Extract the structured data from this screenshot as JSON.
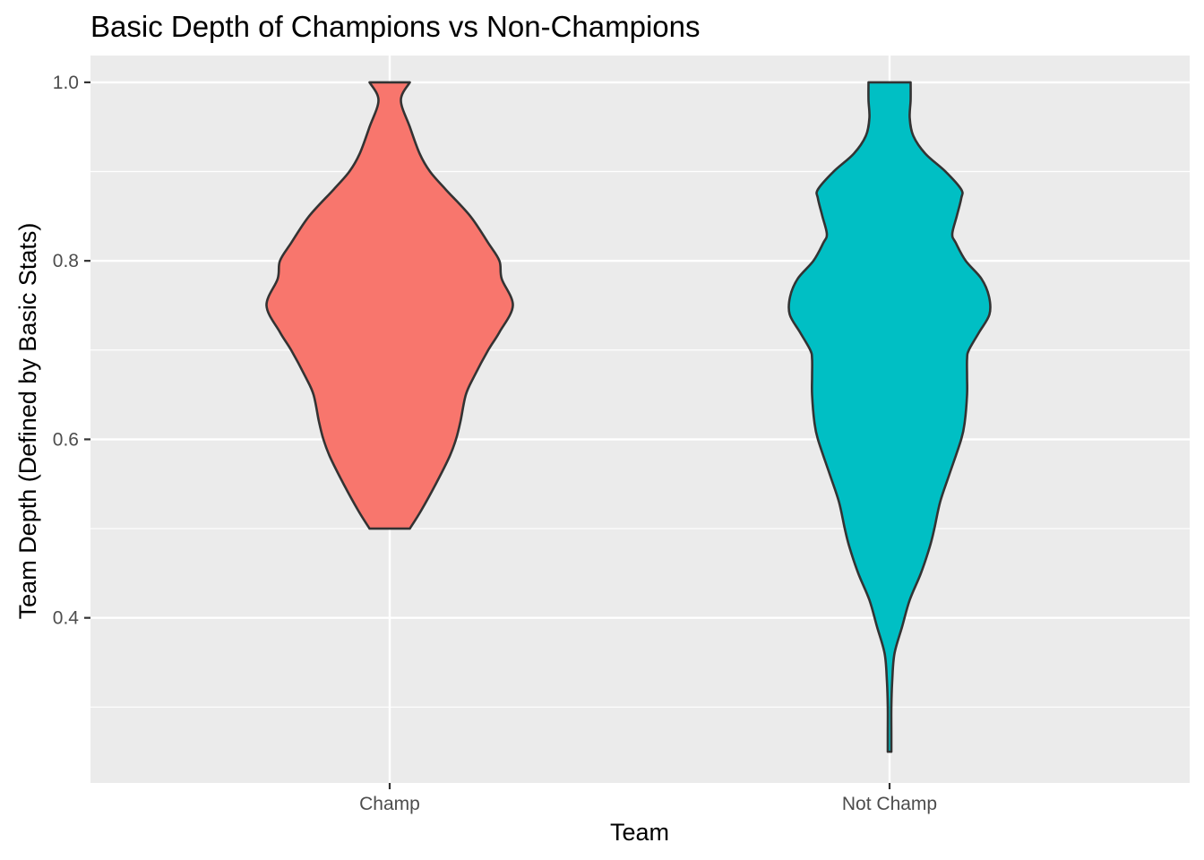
{
  "chart_data": {
    "type": "violin",
    "title": "Basic Depth of Champions vs Non-Champions",
    "xlabel": "Team",
    "ylabel": "Team Depth (Defined by Basic Stats)",
    "categories": [
      "Champ",
      "Not Champ"
    ],
    "ylim": [
      0.215,
      1.03
    ],
    "yticks": [
      0.4,
      0.6,
      0.8,
      1.0
    ],
    "ytick_labels": [
      "0.4",
      "0.6",
      "0.8",
      "1.0"
    ],
    "grid": true,
    "legend": "none",
    "series": [
      {
        "category": "Champ",
        "color": "#F8766D",
        "min": 0.5,
        "max": 1.0,
        "density_profile": [
          [
            0.5,
            0.045
          ],
          [
            0.52,
            0.07
          ],
          [
            0.55,
            0.103
          ],
          [
            0.58,
            0.133
          ],
          [
            0.6,
            0.148
          ],
          [
            0.62,
            0.158
          ],
          [
            0.65,
            0.17
          ],
          [
            0.67,
            0.188
          ],
          [
            0.7,
            0.22
          ],
          [
            0.72,
            0.245
          ],
          [
            0.75,
            0.275
          ],
          [
            0.78,
            0.25
          ],
          [
            0.8,
            0.245
          ],
          [
            0.82,
            0.22
          ],
          [
            0.85,
            0.18
          ],
          [
            0.88,
            0.125
          ],
          [
            0.9,
            0.09
          ],
          [
            0.92,
            0.067
          ],
          [
            0.95,
            0.045
          ],
          [
            0.98,
            0.025
          ],
          [
            1.0,
            0.045
          ]
        ]
      },
      {
        "category": "Not Champ",
        "color": "#00BFC4",
        "min": 0.25,
        "max": 1.0,
        "density_profile": [
          [
            0.25,
            0.004
          ],
          [
            0.27,
            0.004
          ],
          [
            0.3,
            0.004
          ],
          [
            0.33,
            0.006
          ],
          [
            0.36,
            0.011
          ],
          [
            0.39,
            0.028
          ],
          [
            0.42,
            0.045
          ],
          [
            0.45,
            0.07
          ],
          [
            0.48,
            0.09
          ],
          [
            0.5,
            0.1
          ],
          [
            0.53,
            0.113
          ],
          [
            0.56,
            0.133
          ],
          [
            0.6,
            0.16
          ],
          [
            0.62,
            0.168
          ],
          [
            0.65,
            0.173
          ],
          [
            0.67,
            0.173
          ],
          [
            0.69,
            0.173
          ],
          [
            0.7,
            0.177
          ],
          [
            0.72,
            0.2
          ],
          [
            0.74,
            0.223
          ],
          [
            0.76,
            0.222
          ],
          [
            0.78,
            0.205
          ],
          [
            0.8,
            0.17
          ],
          [
            0.82,
            0.148
          ],
          [
            0.83,
            0.14
          ],
          [
            0.85,
            0.15
          ],
          [
            0.87,
            0.16
          ],
          [
            0.88,
            0.16
          ],
          [
            0.9,
            0.125
          ],
          [
            0.92,
            0.08
          ],
          [
            0.94,
            0.053
          ],
          [
            0.96,
            0.045
          ],
          [
            0.98,
            0.047
          ],
          [
            1.0,
            0.047
          ]
        ]
      }
    ]
  }
}
